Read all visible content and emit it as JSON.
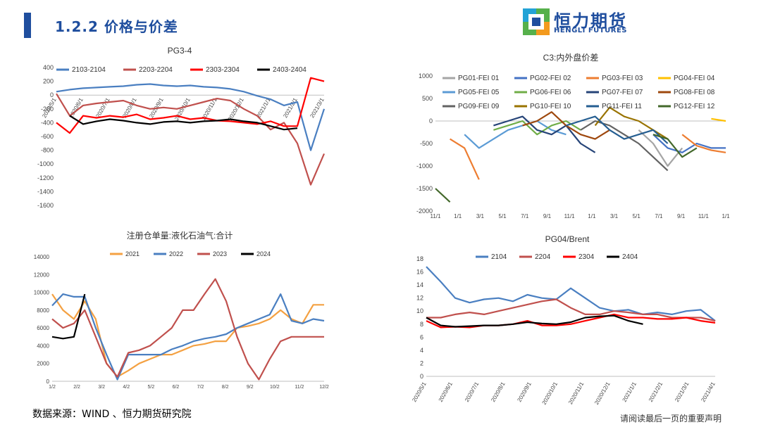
{
  "header": {
    "section_title": "1.2.2 价格与价差"
  },
  "logo": {
    "name_cn": "恒力期货",
    "name_en": "HENGLI FUTURES",
    "colors": {
      "blue": "#1f4e9e",
      "orange": "#f39a1e",
      "cyan": "#23a3d6",
      "green": "#56b04b"
    }
  },
  "footer": {
    "source": "数据来源：WIND 、恒力期货研究院",
    "disclaimer": "请阅读最后一页的重要声明"
  },
  "chart_data": [
    {
      "id": "pg34",
      "type": "line",
      "title": "PG3-4",
      "ylim": [
        -1600,
        400
      ],
      "yticks": [
        -1600,
        -1400,
        -1200,
        -1000,
        -800,
        -600,
        -400,
        -200,
        0,
        200,
        400
      ],
      "xticks": [
        "2020/5/1",
        "2020/6/1",
        "2020/7/1",
        "2020/8/1",
        "2020/9/1",
        "2020/10/1",
        "2020/11/1",
        "2020/12/1",
        "2021/1/1",
        "2021/2/1",
        "2021/3/1"
      ],
      "x": [
        0,
        0.05,
        0.1,
        0.15,
        0.2,
        0.25,
        0.3,
        0.35,
        0.4,
        0.45,
        0.5,
        0.55,
        0.6,
        0.65,
        0.7,
        0.75,
        0.8,
        0.85,
        0.9,
        0.95,
        1.0
      ],
      "series": [
        {
          "name": "2103-2104",
          "color": "#4a7fc1",
          "values": [
            50,
            80,
            100,
            110,
            120,
            130,
            150,
            160,
            140,
            130,
            140,
            120,
            110,
            90,
            50,
            -10,
            -60,
            -150,
            -100,
            -800,
            -200
          ]
        },
        {
          "name": "2203-2204",
          "color": "#c0504d",
          "values": [
            20,
            -300,
            -150,
            -120,
            -100,
            -80,
            -150,
            -200,
            -180,
            -200,
            -150,
            -100,
            -50,
            -80,
            -200,
            -300,
            -500,
            -400,
            -700,
            -1300,
            -850
          ]
        },
        {
          "name": "2303-2304",
          "color": "#ff0000",
          "values": [
            -400,
            -550,
            -300,
            -330,
            -300,
            -320,
            -280,
            -350,
            -330,
            -300,
            -350,
            -330,
            -370,
            -380,
            -400,
            -420,
            -380,
            -450,
            -450,
            250,
            200
          ]
        },
        {
          "name": "2403-2404",
          "color": "#000000",
          "values": [
            null,
            -300,
            -420,
            -380,
            -350,
            -370,
            -400,
            -420,
            -390,
            -380,
            -400,
            -380,
            -370,
            -350,
            -380,
            -400,
            -450,
            -500,
            -480,
            null,
            null
          ]
        }
      ]
    },
    {
      "id": "c3",
      "type": "line",
      "title": "C3:内外盘价差",
      "ylim": [
        -2000,
        1000
      ],
      "yticks": [
        -2000,
        -1500,
        -1000,
        -500,
        0,
        500,
        1000
      ],
      "xticks": [
        "11/1",
        "1/1",
        "3/1",
        "5/1",
        "7/1",
        "9/1",
        "11/1",
        "1/1",
        "3/1",
        "5/1",
        "7/1",
        "9/1",
        "11/1",
        "1/1"
      ],
      "x": [
        0,
        0.05,
        0.1,
        0.15,
        0.2,
        0.25,
        0.3,
        0.35,
        0.4,
        0.45,
        0.5,
        0.55,
        0.6,
        0.65,
        0.7,
        0.75,
        0.8,
        0.85,
        0.9,
        0.95,
        1.0
      ],
      "series": [
        {
          "name": "PG01-FEI 01",
          "color": "#a5a5a5",
          "values": [
            null,
            null,
            null,
            null,
            null,
            null,
            null,
            null,
            null,
            null,
            null,
            null,
            null,
            null,
            -200,
            -500,
            -1000,
            -600,
            null,
            null,
            null
          ]
        },
        {
          "name": "PG02-FEI 02",
          "color": "#4472c4",
          "values": [
            null,
            null,
            null,
            null,
            null,
            null,
            null,
            null,
            null,
            null,
            null,
            null,
            null,
            null,
            null,
            -300,
            -600,
            -700,
            -500,
            -600,
            -600
          ]
        },
        {
          "name": "PG03-FEI 03",
          "color": "#ed7d31",
          "values": [
            null,
            -400,
            -600,
            -1300,
            null,
            null,
            null,
            null,
            null,
            null,
            null,
            null,
            null,
            null,
            null,
            null,
            null,
            -300,
            -550,
            -650,
            -700
          ]
        },
        {
          "name": "PG04-FEI 04",
          "color": "#ffc000",
          "values": [
            null,
            null,
            null,
            null,
            null,
            null,
            null,
            null,
            null,
            null,
            null,
            null,
            null,
            null,
            null,
            null,
            null,
            null,
            null,
            50,
            0
          ]
        },
        {
          "name": "PG05-FEI 05",
          "color": "#5b9bd5",
          "values": [
            null,
            null,
            -300,
            -600,
            -400,
            -200,
            -100,
            0,
            -200,
            -300,
            null,
            null,
            null,
            null,
            null,
            null,
            null,
            null,
            null,
            null,
            null
          ]
        },
        {
          "name": "PG06-FEI 06",
          "color": "#70ad47",
          "values": [
            null,
            null,
            null,
            null,
            -200,
            -100,
            0,
            -300,
            -100,
            0,
            -200,
            null,
            null,
            null,
            null,
            null,
            null,
            null,
            null,
            null,
            null
          ]
        },
        {
          "name": "PG07-FEI 07",
          "color": "#264478",
          "values": [
            null,
            null,
            null,
            null,
            -100,
            0,
            100,
            -200,
            -300,
            -100,
            -500,
            -700,
            null,
            null,
            null,
            null,
            null,
            null,
            null,
            null,
            null
          ]
        },
        {
          "name": "PG08-FEI 08",
          "color": "#9e480e",
          "values": [
            null,
            null,
            null,
            null,
            null,
            null,
            -100,
            0,
            200,
            -100,
            -300,
            -400,
            -200,
            null,
            null,
            null,
            null,
            null,
            null,
            null,
            null
          ]
        },
        {
          "name": "PG09-FEI 09",
          "color": "#636363",
          "values": [
            null,
            null,
            null,
            null,
            null,
            null,
            null,
            null,
            null,
            null,
            -200,
            0,
            -100,
            -300,
            -500,
            -800,
            -1100,
            null,
            null,
            null,
            null
          ]
        },
        {
          "name": "PG10-FEI 10",
          "color": "#997300",
          "values": [
            null,
            null,
            null,
            null,
            null,
            null,
            null,
            null,
            null,
            null,
            null,
            -100,
            300,
            100,
            0,
            -200,
            -400,
            null,
            null,
            null,
            null
          ]
        },
        {
          "name": "PG11-FEI 11",
          "color": "#255e91",
          "values": [
            null,
            null,
            null,
            null,
            null,
            null,
            null,
            null,
            null,
            -100,
            0,
            100,
            -200,
            -400,
            -300,
            -200,
            -500,
            null,
            null,
            null,
            null
          ]
        },
        {
          "name": "PG12-FEI 12",
          "color": "#43682b",
          "values": [
            -1500,
            -1800,
            null,
            null,
            null,
            null,
            null,
            null,
            null,
            null,
            null,
            null,
            null,
            null,
            null,
            -300,
            -400,
            -800,
            -600,
            null,
            null
          ]
        }
      ]
    },
    {
      "id": "warrant",
      "type": "line",
      "title": "注册仓单量:液化石油气:合计",
      "ylim": [
        0,
        14000
      ],
      "yticks": [
        0,
        2000,
        4000,
        6000,
        8000,
        10000,
        12000,
        14000
      ],
      "xticks": [
        "1/2",
        "2/2",
        "3/2",
        "4/2",
        "5/2",
        "6/2",
        "7/2",
        "8/2",
        "9/2",
        "10/2",
        "11/2",
        "12/2"
      ],
      "x": [
        0,
        0.04,
        0.08,
        0.12,
        0.16,
        0.2,
        0.24,
        0.28,
        0.32,
        0.36,
        0.4,
        0.44,
        0.48,
        0.52,
        0.56,
        0.6,
        0.64,
        0.68,
        0.72,
        0.76,
        0.8,
        0.84,
        0.88,
        0.92,
        0.96,
        1.0
      ],
      "series": [
        {
          "name": "2021",
          "color": "#f4a142",
          "values": [
            9800,
            8000,
            7000,
            9000,
            7000,
            2000,
            500,
            1200,
            2000,
            2500,
            3000,
            3000,
            3500,
            4000,
            4200,
            4500,
            4500,
            6000,
            6200,
            6500,
            7000,
            8000,
            7000,
            6500,
            8600,
            8600
          ]
        },
        {
          "name": "2022",
          "color": "#4a7fc1",
          "values": [
            8500,
            9800,
            9500,
            9500,
            6000,
            3000,
            200,
            3000,
            3000,
            3000,
            3000,
            3600,
            4000,
            4500,
            4800,
            5000,
            5300,
            6000,
            6500,
            7000,
            7500,
            9800,
            6800,
            6500,
            7000,
            6800
          ]
        },
        {
          "name": "2023",
          "color": "#c0504d",
          "values": [
            7000,
            6000,
            6500,
            8000,
            5000,
            2000,
            500,
            3200,
            3500,
            4000,
            5000,
            6000,
            8000,
            8000,
            9800,
            11500,
            9000,
            5000,
            2000,
            200,
            2500,
            4500,
            5000,
            5000,
            5000,
            5000
          ]
        },
        {
          "name": "2024",
          "color": "#000000",
          "values": [
            5000,
            4800,
            5000,
            9800,
            null,
            null,
            null,
            null,
            null,
            null,
            null,
            null,
            null,
            null,
            null,
            null,
            null,
            null,
            null,
            null,
            null,
            null,
            null,
            null,
            null,
            null
          ]
        }
      ]
    },
    {
      "id": "pgbrent",
      "type": "line",
      "title": "PG04/Brent",
      "ylim": [
        0,
        18
      ],
      "yticks": [
        0,
        2,
        4,
        6,
        8,
        10,
        12,
        14,
        16,
        18
      ],
      "xticks": [
        "2020/5/1",
        "2020/6/1",
        "2020/7/1",
        "2020/8/1",
        "2020/9/1",
        "2020/10/1",
        "2020/11/1",
        "2020/12/1",
        "2021/1/1",
        "2021/2/1",
        "2021/3/1",
        "2021/4/1"
      ],
      "x": [
        0,
        0.05,
        0.1,
        0.15,
        0.2,
        0.25,
        0.3,
        0.35,
        0.4,
        0.45,
        0.5,
        0.55,
        0.6,
        0.65,
        0.7,
        0.75,
        0.8,
        0.85,
        0.9,
        0.95,
        1.0
      ],
      "series": [
        {
          "name": "2104",
          "color": "#4a7fc1",
          "values": [
            16.8,
            14.5,
            12,
            11.3,
            11.8,
            12,
            11.5,
            12.5,
            12,
            11.8,
            13.5,
            12,
            10.5,
            10,
            10.2,
            9.5,
            9.8,
            9.5,
            10,
            10.2,
            8.5
          ]
        },
        {
          "name": "2204",
          "color": "#c0504d",
          "values": [
            9,
            9,
            9.5,
            9.8,
            9.5,
            10,
            10.5,
            11,
            11.5,
            11.8,
            10.5,
            9.5,
            9.5,
            10,
            9.8,
            9.5,
            9.5,
            9,
            9,
            9,
            8.5
          ]
        },
        {
          "name": "2304",
          "color": "#ff0000",
          "values": [
            8.5,
            7.5,
            7.6,
            7.5,
            7.8,
            7.8,
            8,
            8.5,
            7.8,
            7.8,
            8,
            8.5,
            9,
            9.5,
            9,
            9,
            8.8,
            8.8,
            9,
            8.5,
            8.2
          ]
        },
        {
          "name": "2404",
          "color": "#000000",
          "values": [
            9,
            7.8,
            7.6,
            7.7,
            7.8,
            7.8,
            8,
            8.3,
            8.1,
            8,
            8.3,
            9,
            9.2,
            9.3,
            8.5,
            8,
            null,
            null,
            null,
            null,
            null
          ]
        }
      ]
    }
  ]
}
